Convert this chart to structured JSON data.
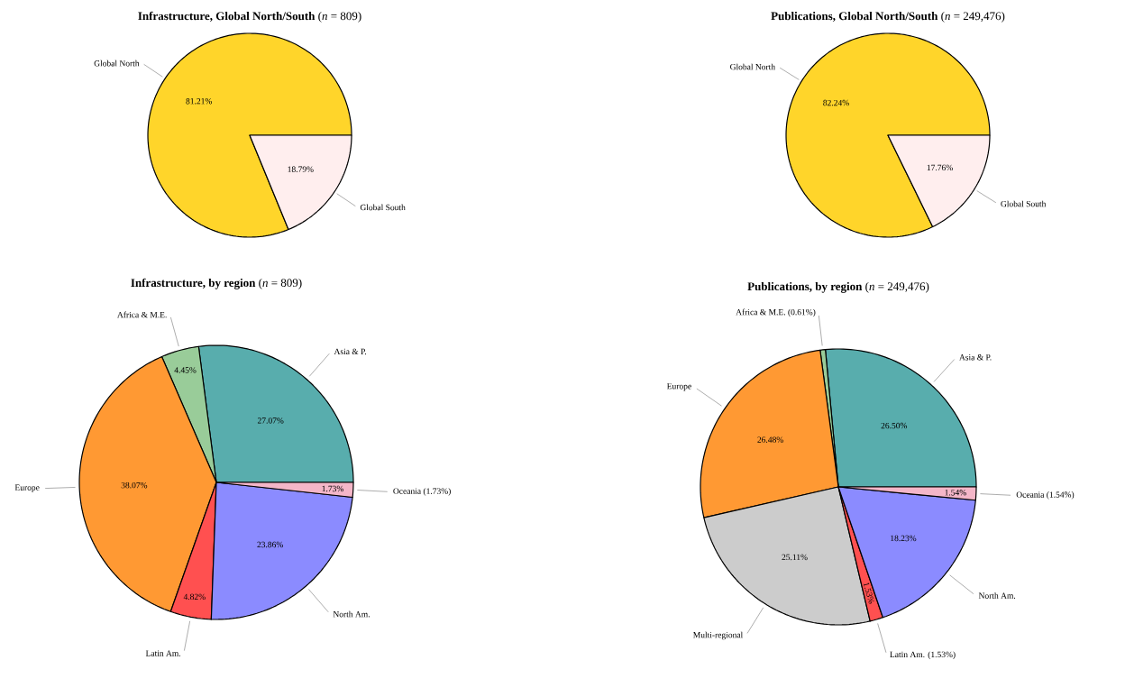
{
  "chart_data": [
    {
      "type": "pie",
      "title": "**Infrastructure, Global North/South** (*n* = 809)",
      "categories": [
        "Global North",
        "Global South"
      ],
      "values": [
        81.21,
        18.79
      ],
      "colors": [
        "#ffd52a",
        "#ffeeee"
      ],
      "value_labels": [
        "81.21%",
        "18.79%"
      ]
    },
    {
      "type": "pie",
      "title": "**Publications, Global North/South** (*n* = 249,476)",
      "categories": [
        "Global North",
        "Global South"
      ],
      "values": [
        82.24,
        17.76
      ],
      "colors": [
        "#ffd52a",
        "#ffeeee"
      ],
      "value_labels": [
        "82.24%",
        "17.76%"
      ]
    },
    {
      "type": "pie",
      "title": "**Infrastructure, by region** (*n* = 809)",
      "categories": [
        "Asia & P.",
        "Africa & M.E.",
        "Europe",
        "Latin Am.",
        "North Am.",
        "Oceania (1.73%)"
      ],
      "values": [
        27.07,
        4.45,
        38.07,
        4.82,
        23.86,
        1.73
      ],
      "colors": [
        "#58adad",
        "#99cc99",
        "#ff9933",
        "#ff5050",
        "#8b8bff",
        "#f4b6c8"
      ],
      "value_labels": [
        "27.07%",
        "4.45%",
        "38.07%",
        "4.82%",
        "23.86%",
        "1.73%"
      ]
    },
    {
      "type": "pie",
      "title": "**Publications, by region** (*n* = 249,476)",
      "categories": [
        "Asia & P.",
        "Africa & M.E. (0.61%)",
        "Europe",
        "Multi-regional",
        "Latin Am. (1.53%)",
        "North Am.",
        "Oceania (1.54%)"
      ],
      "values": [
        26.5,
        0.61,
        26.48,
        25.11,
        1.53,
        18.23,
        1.54
      ],
      "colors": [
        "#58adad",
        "#99cc99",
        "#ff9933",
        "#cccccc",
        "#ff5050",
        "#8b8bff",
        "#f4b6c8"
      ],
      "value_labels": [
        "26.50%",
        null,
        "26.48%",
        "25.11%",
        "1.53%",
        "18.23%",
        "1.54%"
      ]
    }
  ]
}
